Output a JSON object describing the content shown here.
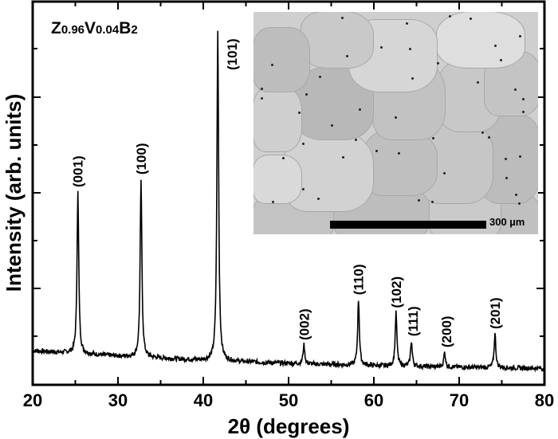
{
  "chart_data": {
    "type": "line",
    "title": "",
    "sample_label": {
      "base": "Z",
      "sub1": "0.96",
      "mid": "V",
      "sub2": "0.04",
      "end": "B",
      "sub3": "2"
    },
    "xlabel": "2θ (degrees)",
    "ylabel": "Intensity (arb. units)",
    "xlim": [
      20,
      80
    ],
    "ylim": [
      0,
      100
    ],
    "xticks": [
      20,
      30,
      40,
      50,
      60,
      70,
      80
    ],
    "xtick_labels": [
      "20",
      "30",
      "40",
      "50",
      "60",
      "70",
      "80"
    ],
    "yticks_labeled": false,
    "grid": false,
    "legend": null,
    "series": [
      {
        "name": "Z0.96V0.04B2 XRD pattern",
        "baseline": [
          {
            "x": 20,
            "y": 8.9
          },
          {
            "x": 30,
            "y": 7.5
          },
          {
            "x": 40,
            "y": 6.4
          },
          {
            "x": 50,
            "y": 5.6
          },
          {
            "x": 60,
            "y": 5.0
          },
          {
            "x": 70,
            "y": 4.6
          },
          {
            "x": 80,
            "y": 4.3
          }
        ],
        "peaks": [
          {
            "hkl": "(001)",
            "x": 25.3,
            "y": 50.3
          },
          {
            "hkl": "(100)",
            "x": 32.7,
            "y": 53.6
          },
          {
            "hkl": "(101)",
            "x": 41.7,
            "y": 92.3
          },
          {
            "hkl": "(002)",
            "x": 51.8,
            "y": 10.4
          },
          {
            "hkl": "(110)",
            "x": 58.2,
            "y": 22.2
          },
          {
            "hkl": "(102)",
            "x": 62.6,
            "y": 18.8
          },
          {
            "hkl": "(111)",
            "x": 64.4,
            "y": 11.4
          },
          {
            "hkl": "(200)",
            "x": 68.3,
            "y": 8.5
          },
          {
            "hkl": "(201)",
            "x": 74.2,
            "y": 13.3
          }
        ]
      }
    ],
    "annotations": [
      "(001)",
      "(100)",
      "(101)",
      "(002)",
      "(110)",
      "(102)",
      "(111)",
      "(200)",
      "(201)"
    ],
    "inset": {
      "type": "micrograph",
      "scale_bar_label": "300 µm"
    }
  }
}
